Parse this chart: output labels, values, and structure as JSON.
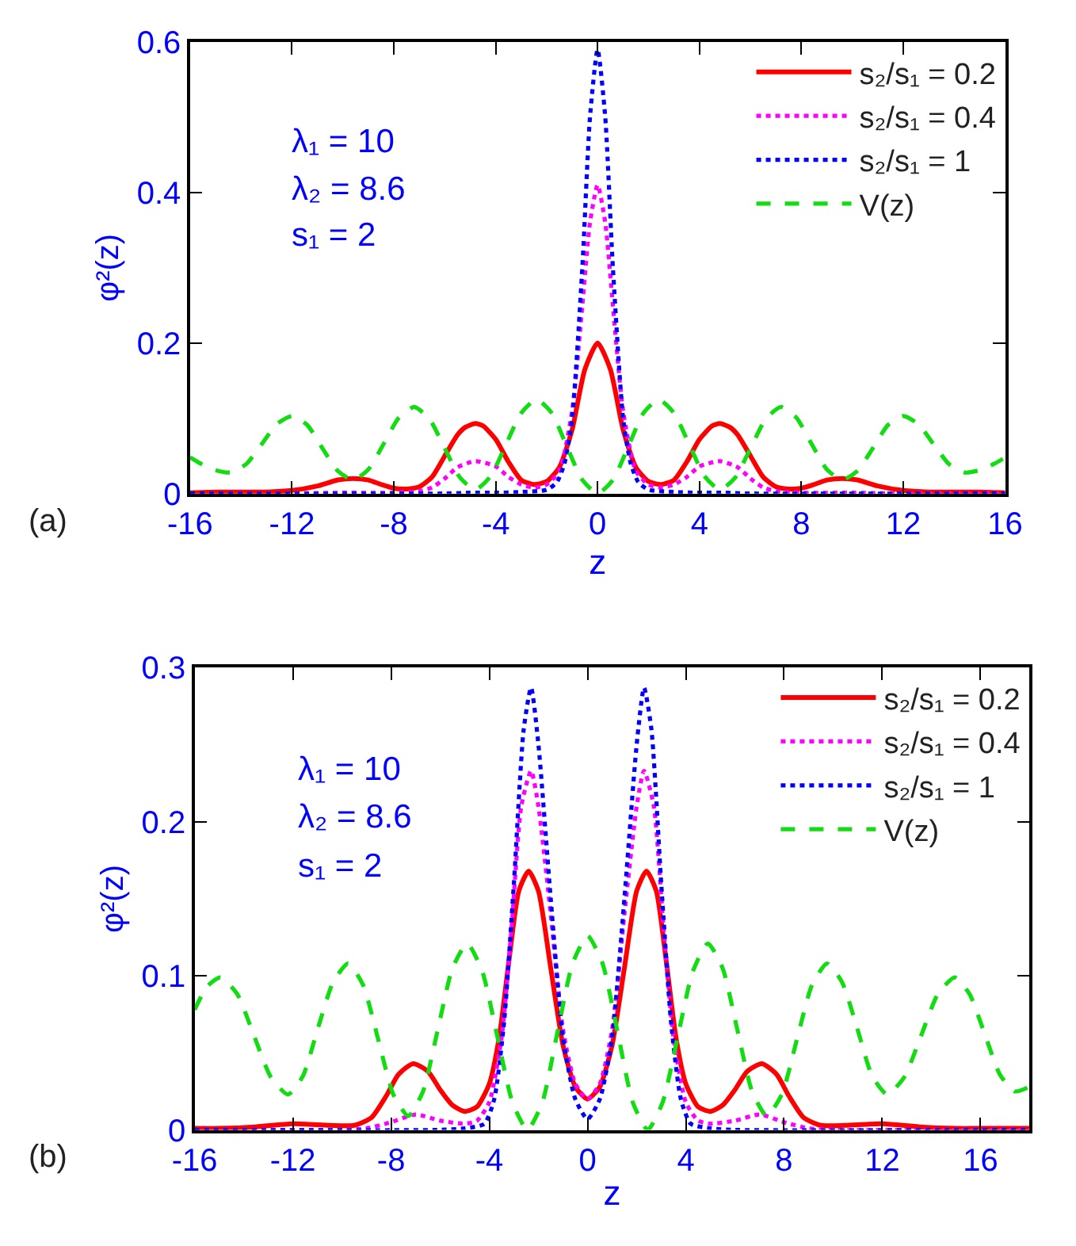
{
  "chart_data": [
    {
      "type": "line",
      "xlabel": "z",
      "ylabel": "φ²(z)",
      "xlim": [
        -16,
        16
      ],
      "ylim": [
        0,
        0.6
      ],
      "xticks": [
        -16,
        -12,
        -8,
        -4,
        0,
        4,
        8,
        12,
        16
      ],
      "yticks": [
        0,
        0.2,
        0.4,
        0.6
      ],
      "legend": "top right",
      "marker": "none",
      "annotations": [
        "λ₁ = 10",
        "λ₂ = 8.6",
        "s₁ = 2",
        "(a)"
      ],
      "series": [
        {
          "name": "s₂/s₁ = 0.2",
          "color": "#ff0000",
          "line_style": "solid",
          "x": [
            -16,
            -15,
            -14,
            -13,
            -12,
            -11,
            -10.2,
            -9.6,
            -9,
            -8.5,
            -8,
            -7.5,
            -7,
            -6.5,
            -6,
            -5.5,
            -5.2,
            -4.8,
            -4.5,
            -4,
            -3.5,
            -3,
            -2.5,
            -2,
            -1.5,
            -1,
            -0.5,
            0,
            0.5,
            1,
            1.5,
            2,
            2.5,
            3,
            3.5,
            4,
            4.5,
            4.8,
            5.2,
            5.5,
            6,
            6.5,
            7,
            7.5,
            8,
            8.5,
            9,
            9.6,
            10.2,
            11,
            12,
            13,
            14,
            15,
            16
          ],
          "values": [
            0.001,
            0.002,
            0.002,
            0.002,
            0.004,
            0.01,
            0.018,
            0.02,
            0.018,
            0.012,
            0.007,
            0.006,
            0.009,
            0.022,
            0.05,
            0.078,
            0.088,
            0.093,
            0.09,
            0.072,
            0.042,
            0.018,
            0.012,
            0.016,
            0.035,
            0.085,
            0.165,
            0.2,
            0.165,
            0.085,
            0.035,
            0.016,
            0.012,
            0.018,
            0.042,
            0.072,
            0.09,
            0.093,
            0.088,
            0.078,
            0.05,
            0.022,
            0.009,
            0.006,
            0.007,
            0.012,
            0.018,
            0.02,
            0.018,
            0.01,
            0.004,
            0.002,
            0.002,
            0.002,
            0.001
          ]
        },
        {
          "name": "s₂/s₁ = 0.4",
          "color": "#ff00ff",
          "line_style": "dotted",
          "x": [
            -16,
            -12,
            -10,
            -8,
            -7,
            -6.5,
            -6,
            -5.5,
            -4.8,
            -4,
            -3.5,
            -3,
            -2.5,
            -2,
            -1.5,
            -1,
            -0.6,
            -0.3,
            0,
            0.3,
            0.6,
            1,
            1.5,
            2,
            2.5,
            3,
            3.5,
            4,
            4.8,
            5.5,
            6,
            6.5,
            7,
            8,
            10,
            12,
            16
          ],
          "values": [
            0,
            0,
            0.001,
            0.001,
            0.003,
            0.008,
            0.02,
            0.035,
            0.043,
            0.036,
            0.022,
            0.012,
            0.008,
            0.012,
            0.03,
            0.11,
            0.25,
            0.36,
            0.41,
            0.36,
            0.25,
            0.11,
            0.03,
            0.012,
            0.008,
            0.012,
            0.022,
            0.036,
            0.043,
            0.035,
            0.02,
            0.008,
            0.003,
            0.001,
            0.001,
            0,
            0
          ]
        },
        {
          "name": "s₂/s₁ = 1",
          "color": "#0000ff",
          "line_style": "dotted",
          "x": [
            -16,
            -6,
            -5,
            -4,
            -3,
            -2,
            -1.6,
            -1.3,
            -1,
            -0.6,
            -0.3,
            0,
            0.3,
            0.6,
            1,
            1.3,
            1.6,
            2,
            3,
            4,
            5,
            6,
            16
          ],
          "values": [
            0,
            0,
            0.001,
            0.001,
            0.002,
            0.005,
            0.015,
            0.04,
            0.1,
            0.3,
            0.5,
            0.59,
            0.5,
            0.3,
            0.1,
            0.04,
            0.015,
            0.005,
            0.002,
            0.001,
            0.001,
            0,
            0
          ]
        },
        {
          "name": "V(z)",
          "color": "#11dd11",
          "line_style": "dashed",
          "x": [
            -16,
            -15.6,
            -15,
            -14.4,
            -13.8,
            -13.2,
            -12.6,
            -12,
            -11.4,
            -10.8,
            -10.2,
            -9.6,
            -9,
            -8.4,
            -7.8,
            -7.2,
            -6.6,
            -6,
            -5.4,
            -4.8,
            -4.2,
            -3.6,
            -3,
            -2.4,
            -1.8,
            -1.2,
            -0.6,
            0,
            0.6,
            1.2,
            1.8,
            2.4,
            3,
            3.6,
            4.2,
            4.8,
            5.4,
            6,
            6.6,
            7.2,
            7.8,
            8.4,
            9,
            9.6,
            10.2,
            10.8,
            11.4,
            12,
            12.6,
            13.2,
            13.8,
            14.4,
            15,
            15.6,
            16
          ],
          "values": [
            0.048,
            0.04,
            0.031,
            0.028,
            0.039,
            0.065,
            0.092,
            0.103,
            0.091,
            0.06,
            0.03,
            0.018,
            0.032,
            0.066,
            0.101,
            0.115,
            0.099,
            0.06,
            0.021,
            0.005,
            0.023,
            0.065,
            0.107,
            0.125,
            0.107,
            0.062,
            0.018,
            0,
            0.018,
            0.062,
            0.107,
            0.125,
            0.107,
            0.065,
            0.023,
            0.005,
            0.021,
            0.06,
            0.099,
            0.115,
            0.101,
            0.066,
            0.032,
            0.018,
            0.03,
            0.06,
            0.091,
            0.103,
            0.092,
            0.065,
            0.039,
            0.028,
            0.031,
            0.04,
            0.048
          ]
        }
      ]
    },
    {
      "type": "line",
      "xlabel": "z",
      "ylabel": "φ²(z)",
      "xlim": [
        -16,
        18
      ],
      "ylim": [
        0,
        0.3
      ],
      "xticks": [
        -16,
        -12,
        -8,
        -4,
        0,
        4,
        8,
        12,
        16
      ],
      "yticks": [
        0,
        0.1,
        0.2,
        0.3
      ],
      "legend": "top right",
      "marker": "none",
      "annotations": [
        "λ₁ = 10",
        "λ₂ = 8.6",
        "s₁ = 2",
        "(b)"
      ],
      "series": [
        {
          "name": "s₂/s₁ = 0.2",
          "color": "#ff0000",
          "line_style": "solid",
          "x": [
            -16,
            -15,
            -13.5,
            -12,
            -10.5,
            -9.5,
            -8.8,
            -8.2,
            -7.7,
            -7.1,
            -6.5,
            -6,
            -5.5,
            -5,
            -4.5,
            -4,
            -3.6,
            -3.2,
            -2.8,
            -2.4,
            -2,
            -1.5,
            -1,
            -0.5,
            0,
            0.5,
            1,
            1.5,
            2,
            2.4,
            2.8,
            3.2,
            3.6,
            4,
            4.5,
            5,
            5.5,
            6,
            6.5,
            7.1,
            7.7,
            8.2,
            8.8,
            9.5,
            10.5,
            12,
            13.5,
            15,
            16,
            17,
            18
          ],
          "values": [
            0.001,
            0.001,
            0.002,
            0.004,
            0.003,
            0.003,
            0.008,
            0.022,
            0.036,
            0.043,
            0.038,
            0.026,
            0.016,
            0.012,
            0.015,
            0.03,
            0.06,
            0.11,
            0.155,
            0.168,
            0.155,
            0.105,
            0.055,
            0.028,
            0.02,
            0.028,
            0.055,
            0.105,
            0.155,
            0.168,
            0.155,
            0.11,
            0.06,
            0.03,
            0.015,
            0.012,
            0.016,
            0.026,
            0.038,
            0.043,
            0.036,
            0.022,
            0.008,
            0.003,
            0.003,
            0.004,
            0.002,
            0.001,
            0.001,
            0.001,
            0.001
          ]
        },
        {
          "name": "s₂/s₁ = 0.4",
          "color": "#ff00ff",
          "line_style": "dotted",
          "x": [
            -16,
            -10,
            -9,
            -8,
            -7,
            -6,
            -5,
            -4.5,
            -4,
            -3.5,
            -3.1,
            -2.7,
            -2.3,
            -2,
            -1.5,
            -1,
            -0.5,
            0,
            0.5,
            1,
            1.5,
            2,
            2.3,
            2.7,
            3.1,
            3.5,
            4,
            4.5,
            5,
            6,
            7,
            8,
            9,
            10,
            18
          ],
          "values": [
            0,
            0,
            0.001,
            0.005,
            0.01,
            0.006,
            0.004,
            0.006,
            0.018,
            0.06,
            0.13,
            0.21,
            0.233,
            0.21,
            0.14,
            0.065,
            0.03,
            0.02,
            0.03,
            0.065,
            0.14,
            0.21,
            0.233,
            0.21,
            0.13,
            0.06,
            0.018,
            0.006,
            0.004,
            0.006,
            0.01,
            0.005,
            0.001,
            0,
            0
          ]
        },
        {
          "name": "s₂/s₁ = 1",
          "color": "#0000ff",
          "line_style": "dotted",
          "x": [
            -16,
            -6,
            -5,
            -4.2,
            -3.8,
            -3.4,
            -3,
            -2.6,
            -2.3,
            -2,
            -1.5,
            -1,
            -0.5,
            0,
            0.5,
            1,
            1.5,
            2,
            2.3,
            2.6,
            3,
            3.4,
            3.8,
            4.2,
            5,
            6,
            18
          ],
          "values": [
            0,
            0,
            0.001,
            0.004,
            0.02,
            0.07,
            0.16,
            0.26,
            0.287,
            0.25,
            0.15,
            0.06,
            0.02,
            0.007,
            0.02,
            0.06,
            0.15,
            0.25,
            0.287,
            0.26,
            0.16,
            0.07,
            0.02,
            0.004,
            0.001,
            0,
            0
          ]
        },
        {
          "name": "V(z)",
          "color": "#11dd11",
          "line_style": "dashed",
          "x": [
            -16,
            -15.5,
            -14.95,
            -14.26,
            -13.58,
            -12.89,
            -12.2,
            -11.59,
            -10.98,
            -10.36,
            -9.75,
            -9.14,
            -8.53,
            -7.91,
            -7.3,
            -6.7,
            -6.1,
            -5.5,
            -4.9,
            -4.29,
            -3.68,
            -3.06,
            -2.45,
            -1.84,
            -1.23,
            -0.61,
            0,
            0.61,
            1.23,
            1.84,
            2.45,
            3.06,
            3.68,
            4.29,
            4.9,
            5.5,
            6.1,
            6.7,
            7.3,
            7.91,
            8.53,
            9.14,
            9.75,
            10.36,
            10.98,
            11.59,
            12.2,
            12.89,
            13.58,
            14.26,
            14.95,
            15.56,
            16.18,
            16.79,
            17.4,
            18
          ],
          "values": [
            0.078,
            0.093,
            0.099,
            0.088,
            0.061,
            0.034,
            0.023,
            0.035,
            0.066,
            0.096,
            0.108,
            0.094,
            0.059,
            0.023,
            0.009,
            0.025,
            0.065,
            0.105,
            0.121,
            0.103,
            0.061,
            0.018,
            0,
            0.018,
            0.063,
            0.108,
            0.126,
            0.108,
            0.063,
            0.018,
            0,
            0.018,
            0.061,
            0.103,
            0.121,
            0.105,
            0.065,
            0.025,
            0.009,
            0.023,
            0.059,
            0.094,
            0.108,
            0.096,
            0.066,
            0.035,
            0.023,
            0.034,
            0.061,
            0.088,
            0.099,
            0.088,
            0.062,
            0.036,
            0.025,
            0.028
          ]
        }
      ]
    }
  ]
}
